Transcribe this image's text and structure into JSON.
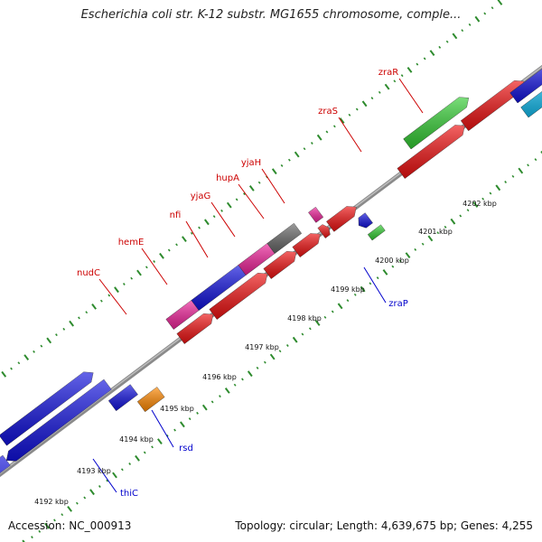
{
  "title": "Escherichia coli str. K-12 substr. MG1655 chromosome, comple...",
  "footer": {
    "accession": "Accession: NC_000913",
    "stats": "Topology: circular; Length: 4,639,675 bp; Genes: 4,255"
  },
  "colors": {
    "backbone": "#8a8a8a",
    "tick": "#2e8b2e",
    "label_forward": "#cc0000",
    "label_reverse": "#0000cc",
    "red": "#ee1111",
    "blue": "#1111dd",
    "magenta": "#ee2299",
    "gray": "#666666",
    "green": "#33cc33",
    "cyan": "#11bbee",
    "orange": "#ff8800"
  },
  "scale_labels": [
    "4192 kbp",
    "4193 kbp",
    "4194 kbp",
    "4195 kbp",
    "4196 kbp",
    "4197 kbp",
    "4198 kbp",
    "4199 kbp",
    "4200 kbp",
    "4201 kbp",
    "4202 kbp"
  ],
  "gene_labels_forward": [
    "nudC",
    "hemE",
    "nfi",
    "yjaG",
    "hupA",
    "yjaH",
    "zraS",
    "zraR"
  ],
  "gene_labels_reverse": [
    "thiC",
    "rsd",
    "zraP"
  ]
}
